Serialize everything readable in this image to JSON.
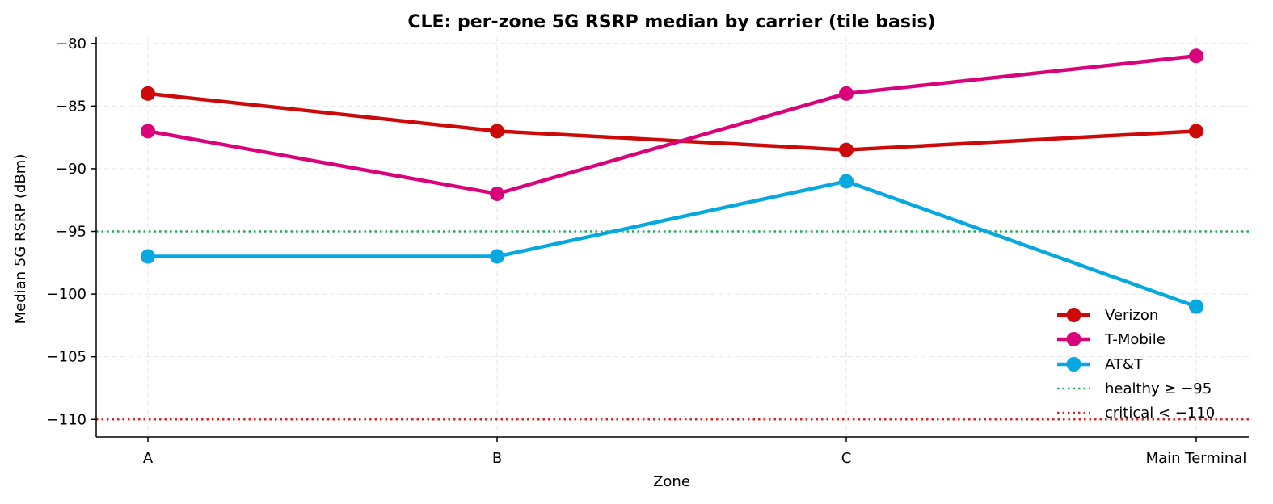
{
  "chart_data": {
    "type": "line",
    "title": "CLE: per-zone 5G RSRP median by carrier (tile basis)",
    "xlabel": "Zone",
    "ylabel": "Median 5G RSRP (dBm)",
    "categories": [
      "A",
      "B",
      "C",
      "Main Terminal"
    ],
    "ylim": [
      -111.4,
      -79.5
    ],
    "yticks": [
      -80,
      -85,
      -90,
      -95,
      -100,
      -105,
      -110
    ],
    "ytick_labels": [
      "−80",
      "−85",
      "−90",
      "−95",
      "−100",
      "−105",
      "−110"
    ],
    "grid": true,
    "legend_position": "lower-right",
    "series": [
      {
        "name": "Verizon",
        "color": "#cc0a0a",
        "values": [
          -84,
          -87,
          -88.5,
          -87
        ]
      },
      {
        "name": "T-Mobile",
        "color": "#d9027a",
        "values": [
          -87,
          -92,
          -84,
          -81
        ]
      },
      {
        "name": "AT&T",
        "color": "#06a8e0",
        "values": [
          -97,
          -97,
          -91,
          -101
        ]
      }
    ],
    "reference_lines": [
      {
        "name": "healthy ≥ −95",
        "value": -95,
        "color": "#23a85a",
        "style": "dotted"
      },
      {
        "name": "critical < −110",
        "value": -110,
        "color": "#cc2a2a",
        "style": "dotted"
      }
    ]
  }
}
